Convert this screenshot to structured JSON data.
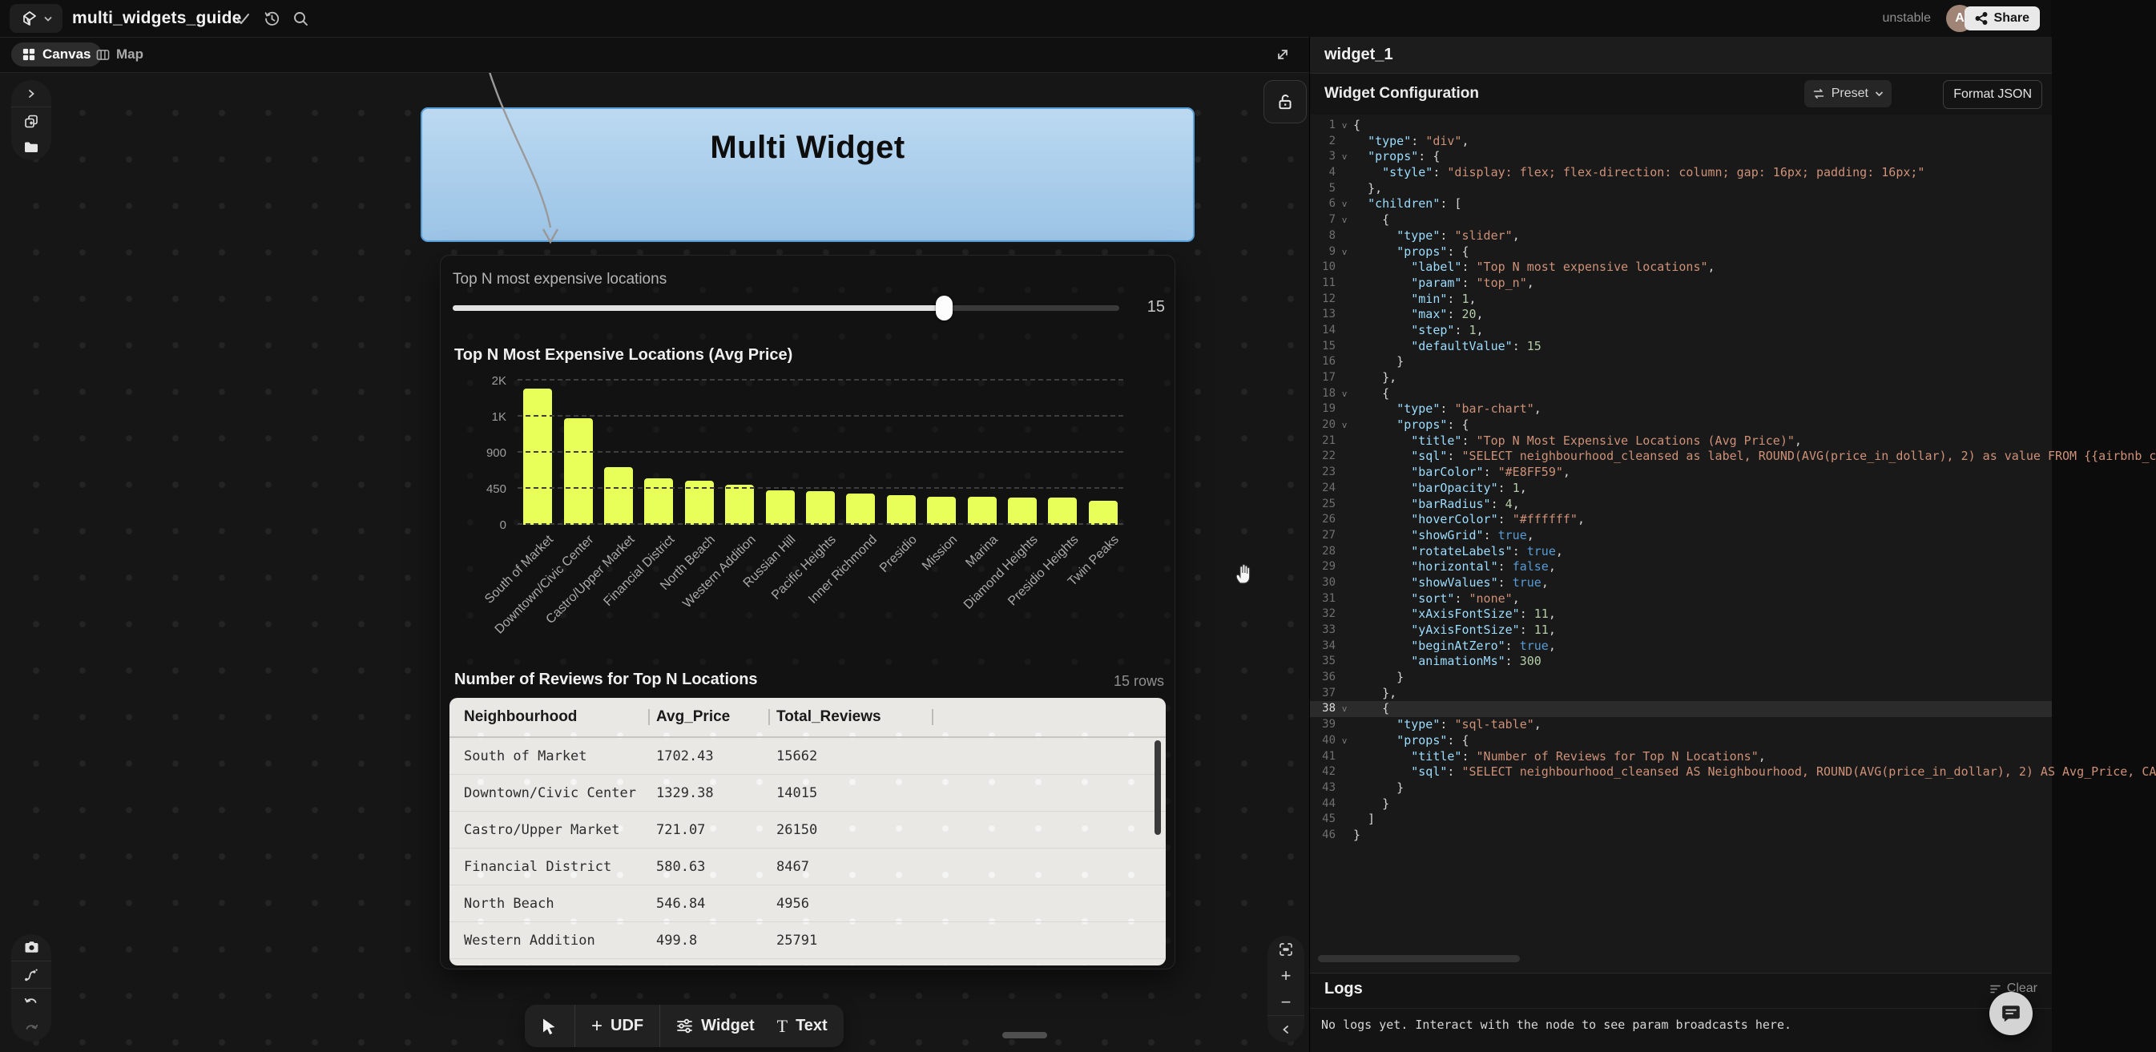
{
  "header": {
    "title": "multi_widgets_guide",
    "env": "unstable",
    "avatar": "A",
    "share": "Share"
  },
  "tabs": {
    "canvas": "Canvas",
    "map": "Map"
  },
  "canvas": {
    "node_title": "Multi Widget"
  },
  "slider": {
    "label": "Top N most expensive locations",
    "value": "15",
    "min": 1,
    "max": 20
  },
  "chart_data": {
    "type": "bar",
    "title": "Top N Most Expensive Locations (Avg Price)",
    "categories": [
      "South of Market",
      "Downtown/Civic Center",
      "Castro/Upper Market",
      "Financial District",
      "North Beach",
      "Western Addition",
      "Russian Hill",
      "Pacific Heights",
      "Inner Richmond",
      "Presidio",
      "Mission",
      "Marina",
      "Diamond Heights",
      "Presidio Heights",
      "Twin Peaks"
    ],
    "values": [
      1702.43,
      1329.38,
      721.07,
      580.63,
      546.84,
      499.8,
      430,
      424,
      393,
      366,
      352,
      347,
      342,
      338,
      301
    ],
    "ylim": [
      0,
      1800
    ],
    "yticks": [
      {
        "value": 0,
        "label": "0"
      },
      {
        "value": 450,
        "label": "450"
      },
      {
        "value": 900,
        "label": "900"
      },
      {
        "value": 1350,
        "label": "1K"
      },
      {
        "value": 1800,
        "label": "2K"
      }
    ],
    "bar_color": "#E8FF59",
    "grid": true,
    "legend": false
  },
  "table": {
    "title": "Number of Reviews for Top N Locations",
    "rows_badge": "15 rows",
    "columns": [
      "Neighbourhood",
      "Avg_Price",
      "Total_Reviews"
    ],
    "rows": [
      [
        "South of Market",
        "1702.43",
        "15662"
      ],
      [
        "Downtown/Civic Center",
        "1329.38",
        "14015"
      ],
      [
        "Castro/Upper Market",
        "721.07",
        "26150"
      ],
      [
        "Financial District",
        "580.63",
        "8467"
      ],
      [
        "North Beach",
        "546.84",
        "4956"
      ],
      [
        "Western Addition",
        "499.8",
        "25791"
      ]
    ]
  },
  "toolbar": {
    "udf": "UDF",
    "widget": "Widget",
    "text": "Text"
  },
  "rpanel": {
    "title": "widget_1",
    "section": "Widget Configuration",
    "preset": "Preset",
    "format": "Format JSON"
  },
  "logs": {
    "title": "Logs",
    "clear": "Clear",
    "empty": "No logs yet. Interact with the node to see param broadcasts here."
  },
  "editor": {
    "lines": [
      [
        1,
        1,
        0,
        [
          [
            "p",
            "{"
          ]
        ]
      ],
      [
        2,
        0,
        0,
        [
          [
            "p",
            "  "
          ],
          [
            "k",
            "\"type\""
          ],
          [
            "p",
            ": "
          ],
          [
            "s",
            "\"div\""
          ],
          [
            "p",
            ","
          ]
        ]
      ],
      [
        3,
        1,
        0,
        [
          [
            "p",
            "  "
          ],
          [
            "k",
            "\"props\""
          ],
          [
            "p",
            ": {"
          ]
        ]
      ],
      [
        4,
        0,
        0,
        [
          [
            "p",
            "    "
          ],
          [
            "k",
            "\"style\""
          ],
          [
            "p",
            ": "
          ],
          [
            "s",
            "\"display: flex; flex-direction: column; gap: 16px; padding: 16px;\""
          ]
        ]
      ],
      [
        5,
        0,
        0,
        [
          [
            "p",
            "  },"
          ]
        ]
      ],
      [
        6,
        1,
        0,
        [
          [
            "p",
            "  "
          ],
          [
            "k",
            "\"children\""
          ],
          [
            "p",
            ": ["
          ]
        ]
      ],
      [
        7,
        1,
        0,
        [
          [
            "p",
            "    {"
          ]
        ]
      ],
      [
        8,
        0,
        0,
        [
          [
            "p",
            "      "
          ],
          [
            "k",
            "\"type\""
          ],
          [
            "p",
            ": "
          ],
          [
            "s",
            "\"slider\""
          ],
          [
            "p",
            ","
          ]
        ]
      ],
      [
        9,
        1,
        0,
        [
          [
            "p",
            "      "
          ],
          [
            "k",
            "\"props\""
          ],
          [
            "p",
            ": {"
          ]
        ]
      ],
      [
        10,
        0,
        0,
        [
          [
            "p",
            "        "
          ],
          [
            "k",
            "\"label\""
          ],
          [
            "p",
            ": "
          ],
          [
            "s",
            "\"Top N most expensive locations\""
          ],
          [
            "p",
            ","
          ]
        ]
      ],
      [
        11,
        0,
        0,
        [
          [
            "p",
            "        "
          ],
          [
            "k",
            "\"param\""
          ],
          [
            "p",
            ": "
          ],
          [
            "s",
            "\"top_n\""
          ],
          [
            "p",
            ","
          ]
        ]
      ],
      [
        12,
        0,
        0,
        [
          [
            "p",
            "        "
          ],
          [
            "k",
            "\"min\""
          ],
          [
            "p",
            ": "
          ],
          [
            "n",
            "1"
          ],
          [
            "p",
            ","
          ]
        ]
      ],
      [
        13,
        0,
        0,
        [
          [
            "p",
            "        "
          ],
          [
            "k",
            "\"max\""
          ],
          [
            "p",
            ": "
          ],
          [
            "n",
            "20"
          ],
          [
            "p",
            ","
          ]
        ]
      ],
      [
        14,
        0,
        0,
        [
          [
            "p",
            "        "
          ],
          [
            "k",
            "\"step\""
          ],
          [
            "p",
            ": "
          ],
          [
            "n",
            "1"
          ],
          [
            "p",
            ","
          ]
        ]
      ],
      [
        15,
        0,
        0,
        [
          [
            "p",
            "        "
          ],
          [
            "k",
            "\"defaultValue\""
          ],
          [
            "p",
            ": "
          ],
          [
            "n",
            "15"
          ]
        ]
      ],
      [
        16,
        0,
        0,
        [
          [
            "p",
            "      }"
          ]
        ]
      ],
      [
        17,
        0,
        0,
        [
          [
            "p",
            "    },"
          ]
        ]
      ],
      [
        18,
        1,
        0,
        [
          [
            "p",
            "    {"
          ]
        ]
      ],
      [
        19,
        0,
        0,
        [
          [
            "p",
            "      "
          ],
          [
            "k",
            "\"type\""
          ],
          [
            "p",
            ": "
          ],
          [
            "s",
            "\"bar-chart\""
          ],
          [
            "p",
            ","
          ]
        ]
      ],
      [
        20,
        1,
        0,
        [
          [
            "p",
            "      "
          ],
          [
            "k",
            "\"props\""
          ],
          [
            "p",
            ": {"
          ]
        ]
      ],
      [
        21,
        0,
        0,
        [
          [
            "p",
            "        "
          ],
          [
            "k",
            "\"title\""
          ],
          [
            "p",
            ": "
          ],
          [
            "s",
            "\"Top N Most Expensive Locations (Avg Price)\""
          ],
          [
            "p",
            ","
          ]
        ]
      ],
      [
        22,
        0,
        0,
        [
          [
            "p",
            "        "
          ],
          [
            "k",
            "\"sql\""
          ],
          [
            "p",
            ": "
          ],
          [
            "s",
            "\"SELECT neighbourhood_cleansed as label, ROUND(AVG(price_in_dollar), 2) as value FROM {{airbnb_c"
          ]
        ]
      ],
      [
        23,
        0,
        0,
        [
          [
            "p",
            "        "
          ],
          [
            "k",
            "\"barColor\""
          ],
          [
            "p",
            ": "
          ],
          [
            "s",
            "\"#E8FF59\""
          ],
          [
            "p",
            ","
          ]
        ]
      ],
      [
        24,
        0,
        0,
        [
          [
            "p",
            "        "
          ],
          [
            "k",
            "\"barOpacity\""
          ],
          [
            "p",
            ": "
          ],
          [
            "n",
            "1"
          ],
          [
            "p",
            ","
          ]
        ]
      ],
      [
        25,
        0,
        0,
        [
          [
            "p",
            "        "
          ],
          [
            "k",
            "\"barRadius\""
          ],
          [
            "p",
            ": "
          ],
          [
            "n",
            "4"
          ],
          [
            "p",
            ","
          ]
        ]
      ],
      [
        26,
        0,
        0,
        [
          [
            "p",
            "        "
          ],
          [
            "k",
            "\"hoverColor\""
          ],
          [
            "p",
            ": "
          ],
          [
            "s",
            "\"#ffffff\""
          ],
          [
            "p",
            ","
          ]
        ]
      ],
      [
        27,
        0,
        0,
        [
          [
            "p",
            "        "
          ],
          [
            "k",
            "\"showGrid\""
          ],
          [
            "p",
            ": "
          ],
          [
            "b",
            "true"
          ],
          [
            "p",
            ","
          ]
        ]
      ],
      [
        28,
        0,
        0,
        [
          [
            "p",
            "        "
          ],
          [
            "k",
            "\"rotateLabels\""
          ],
          [
            "p",
            ": "
          ],
          [
            "b",
            "true"
          ],
          [
            "p",
            ","
          ]
        ]
      ],
      [
        29,
        0,
        0,
        [
          [
            "p",
            "        "
          ],
          [
            "k",
            "\"horizontal\""
          ],
          [
            "p",
            ": "
          ],
          [
            "b",
            "false"
          ],
          [
            "p",
            ","
          ]
        ]
      ],
      [
        30,
        0,
        0,
        [
          [
            "p",
            "        "
          ],
          [
            "k",
            "\"showValues\""
          ],
          [
            "p",
            ": "
          ],
          [
            "b",
            "true"
          ],
          [
            "p",
            ","
          ]
        ]
      ],
      [
        31,
        0,
        0,
        [
          [
            "p",
            "        "
          ],
          [
            "k",
            "\"sort\""
          ],
          [
            "p",
            ": "
          ],
          [
            "s",
            "\"none\""
          ],
          [
            "p",
            ","
          ]
        ]
      ],
      [
        32,
        0,
        0,
        [
          [
            "p",
            "        "
          ],
          [
            "k",
            "\"xAxisFontSize\""
          ],
          [
            "p",
            ": "
          ],
          [
            "n",
            "11"
          ],
          [
            "p",
            ","
          ]
        ]
      ],
      [
        33,
        0,
        0,
        [
          [
            "p",
            "        "
          ],
          [
            "k",
            "\"yAxisFontSize\""
          ],
          [
            "p",
            ": "
          ],
          [
            "n",
            "11"
          ],
          [
            "p",
            ","
          ]
        ]
      ],
      [
        34,
        0,
        0,
        [
          [
            "p",
            "        "
          ],
          [
            "k",
            "\"beginAtZero\""
          ],
          [
            "p",
            ": "
          ],
          [
            "b",
            "true"
          ],
          [
            "p",
            ","
          ]
        ]
      ],
      [
        35,
        0,
        0,
        [
          [
            "p",
            "        "
          ],
          [
            "k",
            "\"animationMs\""
          ],
          [
            "p",
            ": "
          ],
          [
            "n",
            "300"
          ]
        ]
      ],
      [
        36,
        0,
        0,
        [
          [
            "p",
            "      }"
          ]
        ]
      ],
      [
        37,
        0,
        0,
        [
          [
            "p",
            "    },"
          ]
        ]
      ],
      [
        38,
        1,
        1,
        [
          [
            "p",
            "    {"
          ]
        ]
      ],
      [
        39,
        0,
        0,
        [
          [
            "p",
            "      "
          ],
          [
            "k",
            "\"type\""
          ],
          [
            "p",
            ": "
          ],
          [
            "s",
            "\"sql-table\""
          ],
          [
            "p",
            ","
          ]
        ]
      ],
      [
        40,
        1,
        0,
        [
          [
            "p",
            "      "
          ],
          [
            "k",
            "\"props\""
          ],
          [
            "p",
            ": {"
          ]
        ]
      ],
      [
        41,
        0,
        0,
        [
          [
            "p",
            "        "
          ],
          [
            "k",
            "\"title\""
          ],
          [
            "p",
            ": "
          ],
          [
            "s",
            "\"Number of Reviews for Top N Locations\""
          ],
          [
            "p",
            ","
          ]
        ]
      ],
      [
        42,
        0,
        0,
        [
          [
            "p",
            "        "
          ],
          [
            "k",
            "\"sql\""
          ],
          [
            "p",
            ": "
          ],
          [
            "s",
            "\"SELECT neighbourhood_cleansed AS Neighbourhood, ROUND(AVG(price_in_dollar), 2) AS Avg_Price, CA"
          ]
        ]
      ],
      [
        43,
        0,
        0,
        [
          [
            "p",
            "      }"
          ]
        ]
      ],
      [
        44,
        0,
        0,
        [
          [
            "p",
            "    }"
          ]
        ]
      ],
      [
        45,
        0,
        0,
        [
          [
            "p",
            "  ]"
          ]
        ]
      ],
      [
        46,
        0,
        0,
        [
          [
            "p",
            "}"
          ]
        ]
      ]
    ]
  }
}
